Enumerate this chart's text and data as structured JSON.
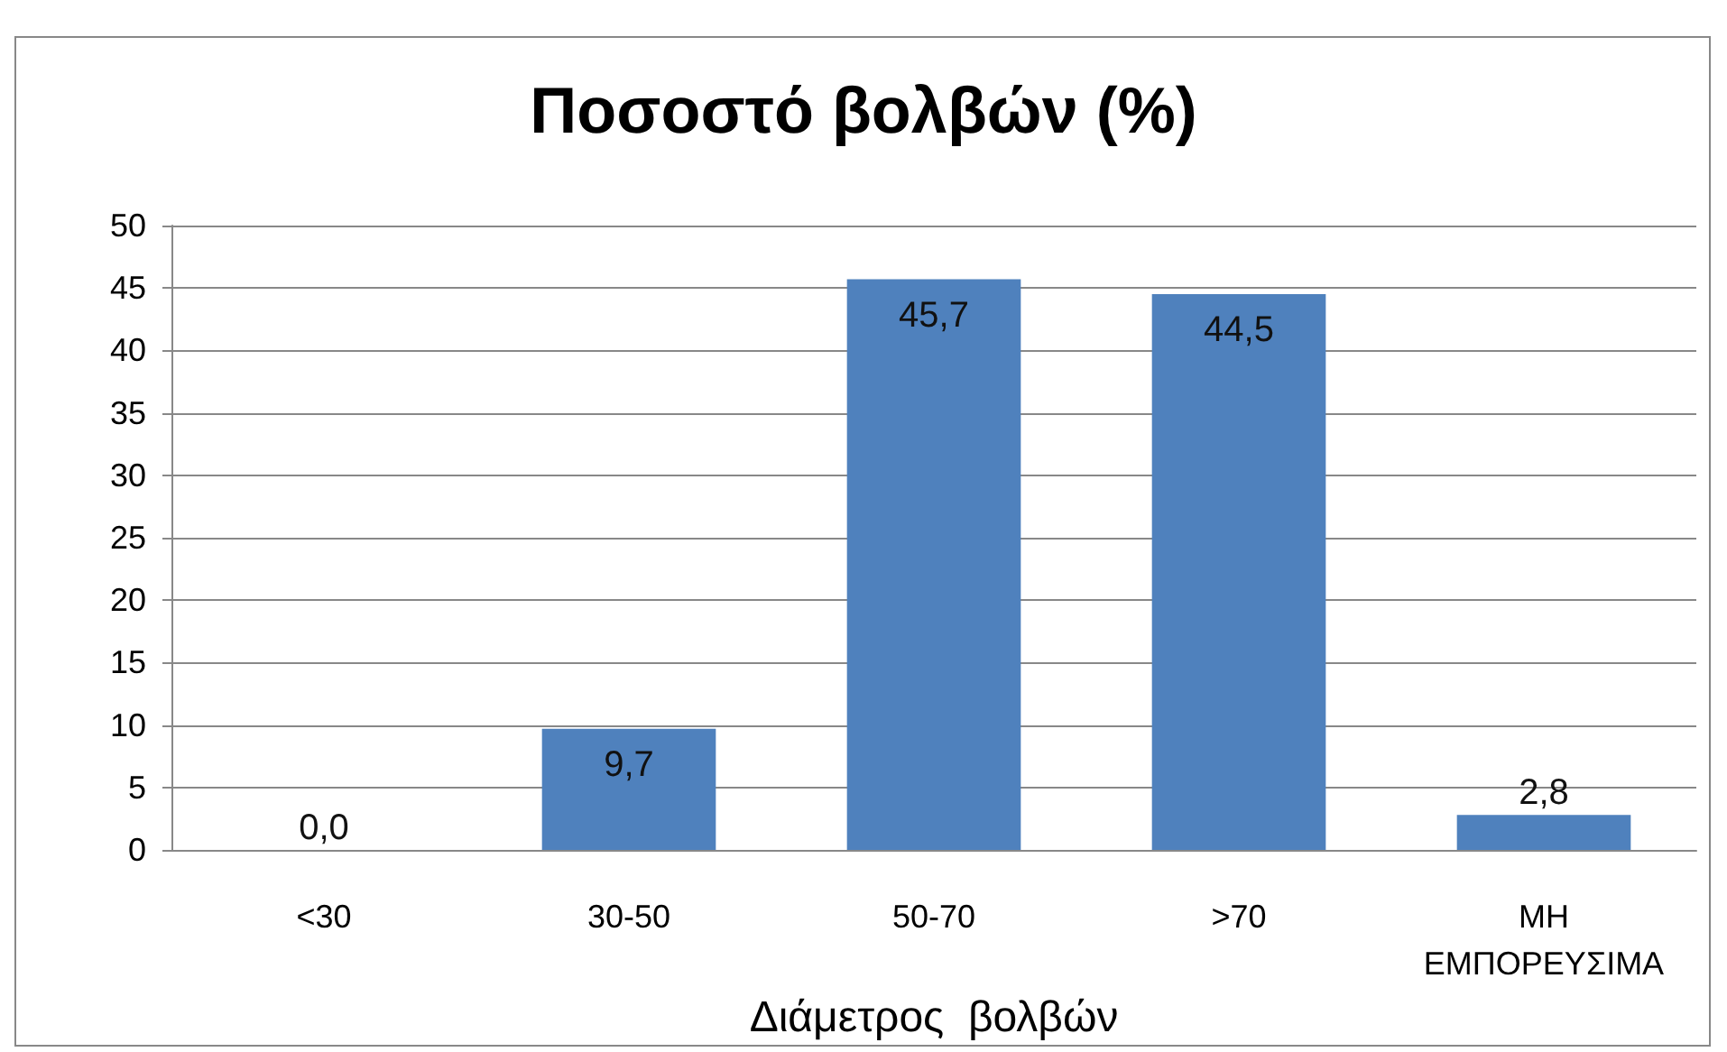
{
  "chart_data": {
    "type": "bar",
    "title": "Ποσοστό βολβών (%)",
    "xlabel": "Διάμετρος  βολβών",
    "categories": [
      "<30",
      "30-50",
      "50-70",
      ">70",
      "ΜΗ ΕΜΠΟΡΕΥΣΙΜΑ"
    ],
    "values": [
      0.0,
      9.7,
      45.7,
      44.5,
      2.8
    ],
    "value_labels": [
      "0,0",
      "9,7",
      "45,7",
      "44,5",
      "2,8"
    ],
    "color": "#4f81bd",
    "ylim": [
      0,
      50
    ],
    "yticks": [
      0,
      5,
      10,
      15,
      20,
      25,
      30,
      35,
      40,
      45,
      50
    ],
    "grid": "y"
  }
}
